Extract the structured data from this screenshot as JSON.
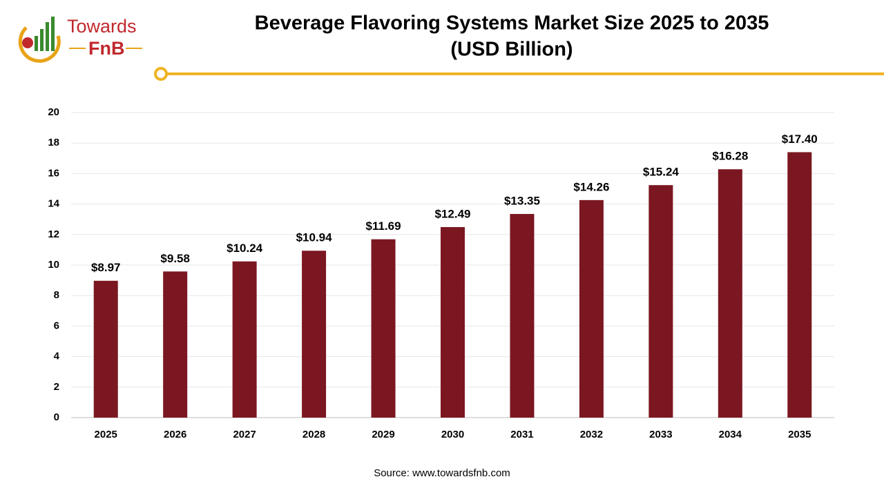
{
  "logo": {
    "name": "Towards",
    "brand": "FnB"
  },
  "chart_data": {
    "type": "bar",
    "title": "Beverage Flavoring Systems Market Size 2025 to 2035",
    "subtitle": "(USD Billion)",
    "categories": [
      "2025",
      "2026",
      "2027",
      "2028",
      "2029",
      "2030",
      "2031",
      "2032",
      "2033",
      "2034",
      "2035"
    ],
    "values": [
      8.97,
      9.58,
      10.24,
      10.94,
      11.69,
      12.49,
      13.35,
      14.26,
      15.24,
      16.28,
      17.4
    ],
    "value_labels": [
      "$8.97",
      "$9.58",
      "$10.24",
      "$10.94",
      "$11.69",
      "$12.49",
      "$13.35",
      "$14.26",
      "$15.24",
      "$16.28",
      "$17.40"
    ],
    "color": "#7b1721",
    "ylim": [
      0,
      20
    ],
    "yticks": [
      0,
      2,
      4,
      6,
      8,
      10,
      12,
      14,
      16,
      18,
      20
    ],
    "grid": true,
    "source": "Source: www.towardsfnb.com"
  }
}
